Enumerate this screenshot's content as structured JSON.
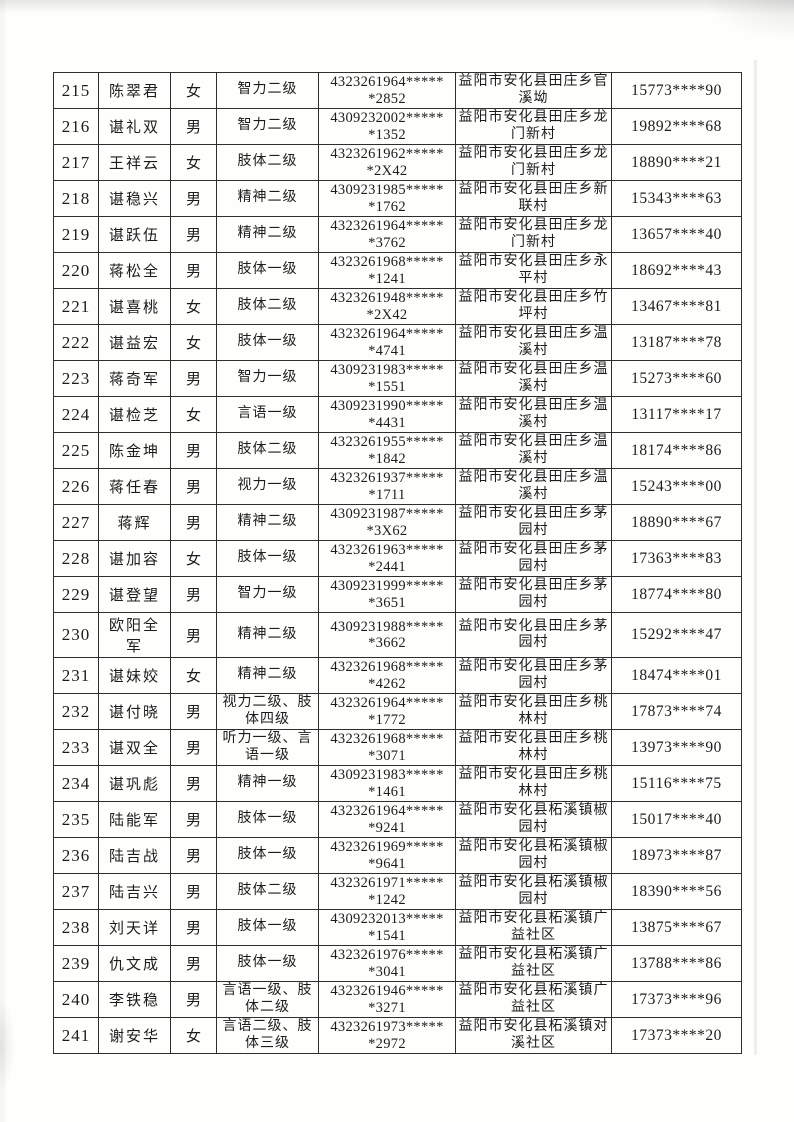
{
  "document": {
    "kind": "scanned-table-page",
    "visible_row_range": "215-241",
    "ink_color": "#1c1c1c",
    "paper_color": "#fefefd",
    "border_color": "#2e2e2e"
  },
  "table": {
    "rows": [
      {
        "seq": "215",
        "name": "陈翠君",
        "gender": "女",
        "level": "智力二级",
        "id1": "4323261964*****",
        "id2": "*2852",
        "addr": "益阳市安化县田庄乡官溪坳",
        "phone": "15773****90"
      },
      {
        "seq": "216",
        "name": "谌礼双",
        "gender": "男",
        "level": "智力二级",
        "id1": "4309232002*****",
        "id2": "*1352",
        "addr": "益阳市安化县田庄乡龙门新村",
        "phone": "19892****68"
      },
      {
        "seq": "217",
        "name": "王祥云",
        "gender": "女",
        "level": "肢体二级",
        "id1": "4323261962*****",
        "id2": "*2X42",
        "addr": "益阳市安化县田庄乡龙门新村",
        "phone": "18890****21"
      },
      {
        "seq": "218",
        "name": "谌稳兴",
        "gender": "男",
        "level": "精神二级",
        "id1": "4309231985*****",
        "id2": "*1762",
        "addr": "益阳市安化县田庄乡新联村",
        "phone": "15343****63"
      },
      {
        "seq": "219",
        "name": "谌跃伍",
        "gender": "男",
        "level": "精神二级",
        "id1": "4323261964*****",
        "id2": "*3762",
        "addr": "益阳市安化县田庄乡龙门新村",
        "phone": "13657****40"
      },
      {
        "seq": "220",
        "name": "蒋松全",
        "gender": "男",
        "level": "肢体一级",
        "id1": "4323261968*****",
        "id2": "*1241",
        "addr": "益阳市安化县田庄乡永平村",
        "phone": "18692****43"
      },
      {
        "seq": "221",
        "name": "谌喜桃",
        "gender": "女",
        "level": "肢体二级",
        "id1": "4323261948*****",
        "id2": "*2X42",
        "addr": "益阳市安化县田庄乡竹坪村",
        "phone": "13467****81"
      },
      {
        "seq": "222",
        "name": "谌益宏",
        "gender": "女",
        "level": "肢体一级",
        "id1": "4323261964*****",
        "id2": "*4741",
        "addr": "益阳市安化县田庄乡温溪村",
        "phone": "13187****78"
      },
      {
        "seq": "223",
        "name": "蒋奇军",
        "gender": "男",
        "level": "智力一级",
        "id1": "4309231983*****",
        "id2": "*1551",
        "addr": "益阳市安化县田庄乡温溪村",
        "phone": "15273****60"
      },
      {
        "seq": "224",
        "name": "谌检芝",
        "gender": "女",
        "level": "言语一级",
        "id1": "4309231990*****",
        "id2": "*4431",
        "addr": "益阳市安化县田庄乡温溪村",
        "phone": "13117****17"
      },
      {
        "seq": "225",
        "name": "陈金坤",
        "gender": "男",
        "level": "肢体二级",
        "id1": "4323261955*****",
        "id2": "*1842",
        "addr": "益阳市安化县田庄乡温溪村",
        "phone": "18174****86"
      },
      {
        "seq": "226",
        "name": "蒋任春",
        "gender": "男",
        "level": "视力一级",
        "id1": "4323261937*****",
        "id2": "*1711",
        "addr": "益阳市安化县田庄乡温溪村",
        "phone": "15243****00"
      },
      {
        "seq": "227",
        "name": "蒋辉",
        "gender": "男",
        "level": "精神二级",
        "id1": "4309231987*****",
        "id2": "*3X62",
        "addr": "益阳市安化县田庄乡茅园村",
        "phone": "18890****67"
      },
      {
        "seq": "228",
        "name": "谌加容",
        "gender": "女",
        "level": "肢体一级",
        "id1": "4323261963*****",
        "id2": "*2441",
        "addr": "益阳市安化县田庄乡茅园村",
        "phone": "17363****83"
      },
      {
        "seq": "229",
        "name": "谌登望",
        "gender": "男",
        "level": "智力一级",
        "id1": "4309231999*****",
        "id2": "*3651",
        "addr": "益阳市安化县田庄乡茅园村",
        "phone": "18774****80"
      },
      {
        "seq": "230",
        "name": "欧阳全军",
        "gender": "男",
        "level": "精神二级",
        "id1": "4309231988*****",
        "id2": "*3662",
        "addr": "益阳市安化县田庄乡茅园村",
        "phone": "15292****47"
      },
      {
        "seq": "231",
        "name": "谌妹姣",
        "gender": "女",
        "level": "精神二级",
        "id1": "4323261968*****",
        "id2": "*4262",
        "addr": "益阳市安化县田庄乡茅园村",
        "phone": "18474****01"
      },
      {
        "seq": "232",
        "name": "谌付晓",
        "gender": "男",
        "level": "视力二级、肢体四级",
        "id1": "4323261964*****",
        "id2": "*1772",
        "addr": "益阳市安化县田庄乡桃林村",
        "phone": "17873****74"
      },
      {
        "seq": "233",
        "name": "谌双全",
        "gender": "男",
        "level": "听力一级、言语一级",
        "id1": "4323261968*****",
        "id2": "*3071",
        "addr": "益阳市安化县田庄乡桃林村",
        "phone": "13973****90"
      },
      {
        "seq": "234",
        "name": "谌巩彪",
        "gender": "男",
        "level": "精神一级",
        "id1": "4309231983*****",
        "id2": "*1461",
        "addr": "益阳市安化县田庄乡桃林村",
        "phone": "15116****75"
      },
      {
        "seq": "235",
        "name": "陆能军",
        "gender": "男",
        "level": "肢体一级",
        "id1": "4323261964*****",
        "id2": "*9241",
        "addr": "益阳市安化县柘溪镇椒园村",
        "phone": "15017****40"
      },
      {
        "seq": "236",
        "name": "陆吉战",
        "gender": "男",
        "level": "肢体一级",
        "id1": "4323261969*****",
        "id2": "*9641",
        "addr": "益阳市安化县柘溪镇椒园村",
        "phone": "18973****87"
      },
      {
        "seq": "237",
        "name": "陆吉兴",
        "gender": "男",
        "level": "肢体二级",
        "id1": "4323261971*****",
        "id2": "*1242",
        "addr": "益阳市安化县柘溪镇椒园村",
        "phone": "18390****56"
      },
      {
        "seq": "238",
        "name": "刘天详",
        "gender": "男",
        "level": "肢体一级",
        "id1": "4309232013*****",
        "id2": "*1541",
        "addr": "益阳市安化县柘溪镇广益社区",
        "phone": "13875****67"
      },
      {
        "seq": "239",
        "name": "仇文成",
        "gender": "男",
        "level": "肢体一级",
        "id1": "4323261976*****",
        "id2": "*3041",
        "addr": "益阳市安化县柘溪镇广益社区",
        "phone": "13788****86"
      },
      {
        "seq": "240",
        "name": "李铁稳",
        "gender": "男",
        "level": "言语一级、肢体二级",
        "id1": "4323261946*****",
        "id2": "*3271",
        "addr": "益阳市安化县柘溪镇广益社区",
        "phone": "17373****96"
      },
      {
        "seq": "241",
        "name": "谢安华",
        "gender": "女",
        "level": "言语二级、肢体三级",
        "id1": "4323261973*****",
        "id2": "*2972",
        "addr": "益阳市安化县柘溪镇对溪社区",
        "phone": "17373****20"
      }
    ]
  }
}
